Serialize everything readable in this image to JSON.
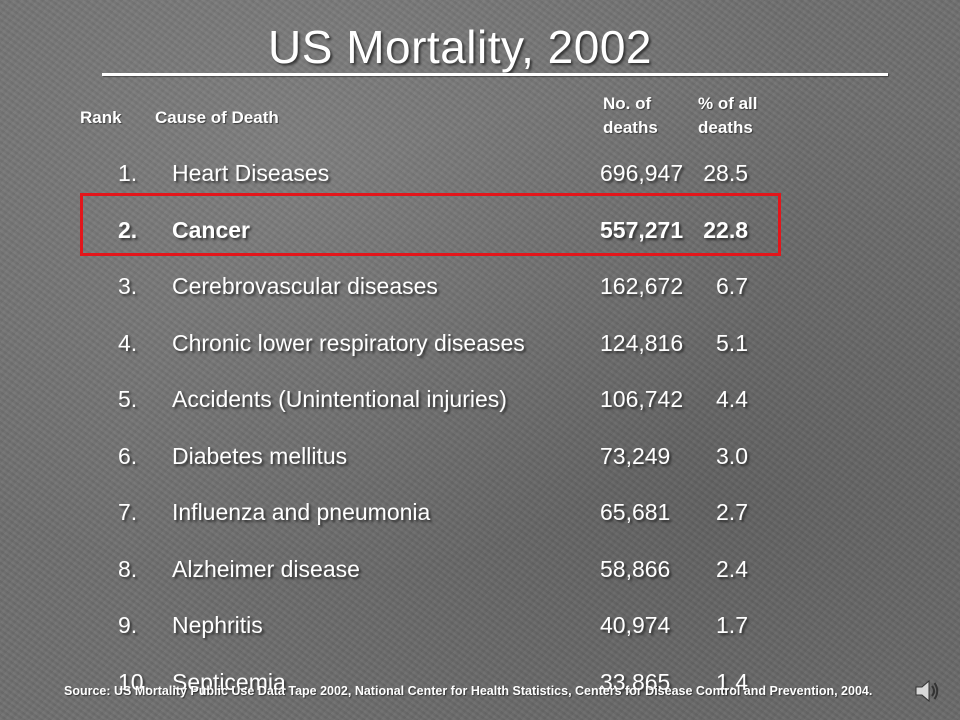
{
  "slide": {
    "title": "US Mortality, 2002"
  },
  "headers": {
    "rank": "Rank",
    "cause": "Cause of Death",
    "num_line1": "No. of",
    "num_line2": "deaths",
    "pct_line1": "% of all",
    "pct_line2": "deaths"
  },
  "rows": [
    {
      "rank": "1.",
      "cause": "Heart Diseases",
      "deaths": "696,947",
      "percent": "28.5"
    },
    {
      "rank": "2.",
      "cause": "Cancer",
      "deaths": "557,271",
      "percent": "22.8"
    },
    {
      "rank": "3.",
      "cause": "Cerebrovascular diseases",
      "deaths": "162,672",
      "percent": "6.7"
    },
    {
      "rank": "4.",
      "cause": "Chronic lower respiratory diseases",
      "deaths": "124,816",
      "percent": "5.1"
    },
    {
      "rank": "5.",
      "cause": "Accidents (Unintentional injuries)",
      "deaths": "106,742",
      "percent": "4.4"
    },
    {
      "rank": "6.",
      "cause": "Diabetes mellitus",
      "deaths": "73,249",
      "percent": "3.0"
    },
    {
      "rank": "7.",
      "cause": "Influenza and pneumonia",
      "deaths": "65,681",
      "percent": "2.7"
    },
    {
      "rank": "8.",
      "cause": "Alzheimer disease",
      "deaths": "58,866",
      "percent": "2.4"
    },
    {
      "rank": "9.",
      "cause": "Nephritis",
      "deaths": "40,974",
      "percent": "1.7"
    },
    {
      "rank": "10.",
      "cause": "Septicemia",
      "deaths": "33,865",
      "percent": "1.4"
    }
  ],
  "highlighted_row": "2.",
  "source": "Source: US Mortality Public Use Data Tape 2002, National Center for Health Statistics, Centers for Disease Control and Prevention, 2004.",
  "colors": {
    "highlight_border": "#e3161b",
    "text": "#ffffff",
    "background": "#6f6f6f"
  },
  "icons": {
    "audio": "speaker-icon"
  }
}
